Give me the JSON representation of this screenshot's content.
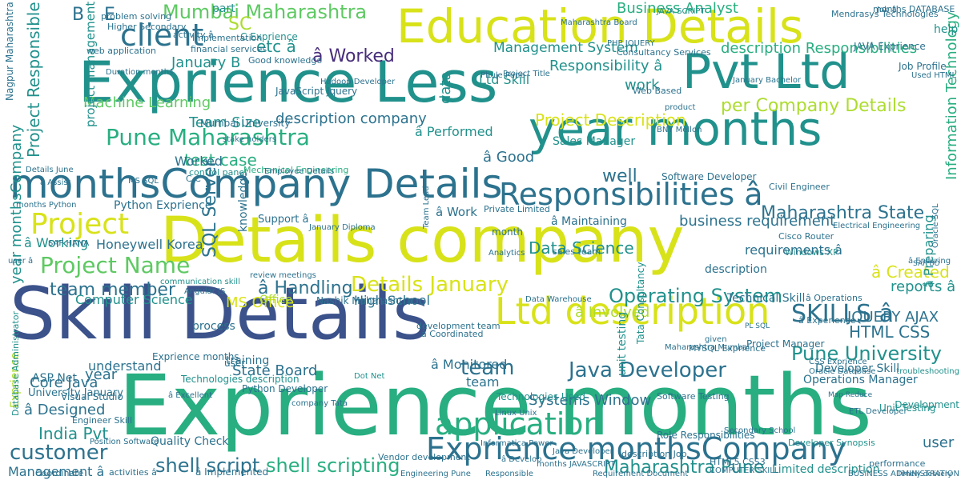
{
  "palette": {
    "navy": "#3b528b",
    "purple": "#472d7b",
    "dark_teal": "#2c728e",
    "teal": "#21918c",
    "green": "#28ae80",
    "light_green": "#5ec962",
    "lime": "#addc30",
    "yellow": "#d8e219"
  },
  "words": [
    {
      "text": "Exprience months",
      "color": "green"
    },
    {
      "text": "Skill Details",
      "color": "navy"
    },
    {
      "text": "Details company",
      "color": "yellow"
    },
    {
      "text": "Exprience Less",
      "color": "teal"
    },
    {
      "text": "Pvt Ltd",
      "color": "teal"
    },
    {
      "text": "Education Details",
      "color": "yellow"
    },
    {
      "text": "year months",
      "color": "teal"
    },
    {
      "text": "monthsCompany Details",
      "color": "dark_teal"
    },
    {
      "text": "Ltd description",
      "color": "yellow"
    },
    {
      "text": "Responsibilities â",
      "color": "dark_teal"
    },
    {
      "text": "Exprience monthsCompany",
      "color": "dark_teal"
    },
    {
      "text": "application",
      "color": "green"
    },
    {
      "text": "Project",
      "color": "yellow"
    },
    {
      "text": "Project Name",
      "color": "light_green"
    },
    {
      "text": "Pune Maharashtra",
      "color": "green"
    },
    {
      "text": "client",
      "color": "dark_teal"
    },
    {
      "text": "SKILLS â",
      "color": "dark_teal"
    },
    {
      "text": "Java Developer",
      "color": "dark_teal"
    },
    {
      "text": "Operating System",
      "color": "teal"
    },
    {
      "text": "Details January",
      "color": "yellow"
    },
    {
      "text": "Mumbai Maharashtra",
      "color": "light_green"
    },
    {
      "text": "customer",
      "color": "dark_teal"
    },
    {
      "text": "team",
      "color": "dark_teal"
    },
    {
      "text": "team member",
      "color": "dark_teal"
    },
    {
      "text": "Pune University",
      "color": "teal"
    },
    {
      "text": "shell script",
      "color": "dark_teal"
    },
    {
      "text": "shell scripting",
      "color": "green"
    },
    {
      "text": "Maharashtra State",
      "color": "dark_teal"
    },
    {
      "text": "per Company Details",
      "color": "lime"
    },
    {
      "text": "description company",
      "color": "dark_teal"
    },
    {
      "text": "Management System",
      "color": "teal"
    },
    {
      "text": "Project Description",
      "color": "yellow"
    },
    {
      "text": "â Worked",
      "color": "purple"
    },
    {
      "text": "â Handling",
      "color": "dark_teal"
    },
    {
      "text": "State Board",
      "color": "dark_teal"
    },
    {
      "text": "HTML CSS",
      "color": "dark_teal"
    },
    {
      "text": "JQUERY AJAX",
      "color": "dark_teal"
    },
    {
      "text": "â Created",
      "color": "yellow"
    },
    {
      "text": "reports â",
      "color": "teal"
    },
    {
      "text": "Data Science",
      "color": "teal"
    },
    {
      "text": "Business Analyst",
      "color": "green"
    },
    {
      "text": "Responsibility â",
      "color": "teal"
    },
    {
      "text": "description Responsibilities",
      "color": "green"
    },
    {
      "text": "test case",
      "color": "green"
    },
    {
      "text": "business requirement",
      "color": "dark_teal"
    },
    {
      "text": "MS Office",
      "color": "yellow"
    },
    {
      "text": "Core Java",
      "color": "dark_teal"
    },
    {
      "text": "India Pvt",
      "color": "teal"
    },
    {
      "text": "Honeywell Korea",
      "color": "dark_teal"
    },
    {
      "text": "Machine Learning",
      "color": "light_green"
    },
    {
      "text": "Python Exprience",
      "color": "dark_teal"
    },
    {
      "text": "Team Size",
      "color": "teal"
    },
    {
      "text": "â Involved",
      "color": "lime"
    },
    {
      "text": "Limited description",
      "color": "teal"
    },
    {
      "text": "Quality Check",
      "color": "dark_teal"
    },
    {
      "text": "SQL Server",
      "color": "dark_teal"
    },
    {
      "text": "year monthsCompany",
      "color": "teal"
    },
    {
      "text": "January B",
      "color": "teal"
    },
    {
      "text": "Ltd Skill",
      "color": "teal"
    },
    {
      "text": "Maharashtra Pune",
      "color": "teal"
    },
    {
      "text": "Information Technology",
      "color": "green"
    },
    {
      "text": "â Work",
      "color": "dark_teal"
    },
    {
      "text": "Technical Skill",
      "color": "dark_teal"
    },
    {
      "text": "JAVA Exprience",
      "color": "dark_teal"
    },
    {
      "text": "Software Developer",
      "color": "dark_teal"
    },
    {
      "text": "Sales Manager",
      "color": "teal"
    },
    {
      "text": "High School",
      "color": "dark_teal"
    },
    {
      "text": "University January",
      "color": "dark_teal"
    },
    {
      "text": "Systems Window",
      "color": "dark_teal"
    },
    {
      "text": "â Designed",
      "color": "dark_teal"
    },
    {
      "text": "â Preparing",
      "color": "teal"
    },
    {
      "text": "Computer Science",
      "color": "teal"
    },
    {
      "text": "Windows XP",
      "color": "teal"
    },
    {
      "text": "understand",
      "color": "dark_teal"
    },
    {
      "text": "Civil Engineer",
      "color": "dark_teal"
    },
    {
      "text": "requirements â",
      "color": "dark_teal"
    },
    {
      "text": "Management â",
      "color": "dark_teal"
    },
    {
      "text": "Office",
      "color": "lime"
    },
    {
      "text": "user",
      "color": "dark_teal"
    },
    {
      "text": "well",
      "color": "dark_teal"
    },
    {
      "text": "year",
      "color": "dark_teal"
    },
    {
      "text": "Exprience",
      "color": "lime"
    },
    {
      "text": "data",
      "color": "teal"
    },
    {
      "text": "process",
      "color": "dark_teal"
    },
    {
      "text": "training",
      "color": "dark_teal"
    },
    {
      "text": "work",
      "color": "teal"
    },
    {
      "text": "part",
      "color": "teal"
    },
    {
      "text": "help",
      "color": "teal"
    },
    {
      "text": "etc â",
      "color": "teal"
    },
    {
      "text": "Worked",
      "color": "dark_teal"
    },
    {
      "text": "Project Responsible",
      "color": "teal"
    },
    {
      "text": "knowledge",
      "color": "dark_teal"
    },
    {
      "text": "â Good",
      "color": "dark_teal"
    },
    {
      "text": "â Monitored",
      "color": "dark_teal"
    },
    {
      "text": "â Performed",
      "color": "teal"
    },
    {
      "text": "â Working",
      "color": "teal"
    },
    {
      "text": "â Maintaining",
      "color": "dark_teal"
    },
    {
      "text": "Nagpur Maharashtra",
      "color": "dark_teal"
    },
    {
      "text": "project management",
      "color": "teal"
    },
    {
      "text": "description",
      "color": "dark_teal"
    },
    {
      "text": "Technologies description",
      "color": "teal"
    },
    {
      "text": "Technologies Used",
      "color": "teal"
    },
    {
      "text": "Development",
      "color": "teal"
    },
    {
      "text": "Mumbai University",
      "color": "dark_teal"
    },
    {
      "text": "problem solving",
      "color": "dark_teal"
    },
    {
      "text": "Higher Secondary",
      "color": "dark_teal"
    },
    {
      "text": "Duration months",
      "color": "dark_teal"
    },
    {
      "text": "ASP Net",
      "color": "dark_teal"
    },
    {
      "text": "Visual Studio",
      "color": "dark_teal"
    },
    {
      "text": "Python Developer",
      "color": "dark_teal"
    },
    {
      "text": "Software Testing",
      "color": "dark_teal"
    },
    {
      "text": "Operations Manager",
      "color": "dark_teal"
    },
    {
      "text": "MYSQL Exprience",
      "color": "dark_teal"
    },
    {
      "text": "Data Warehouse",
      "color": "dark_teal"
    },
    {
      "text": "development team",
      "color": "dark_teal"
    },
    {
      "text": "Nashik Maharashtra",
      "color": "dark_teal"
    },
    {
      "text": "Oracle Database",
      "color": "dark_teal"
    },
    {
      "text": "COMPUTER SKILL",
      "color": "dark_teal"
    },
    {
      "text": "ETL Developer",
      "color": "dark_teal"
    },
    {
      "text": "Cisco Router",
      "color": "dark_teal"
    },
    {
      "text": "Job Profile",
      "color": "dark_teal"
    },
    {
      "text": "Used HTML",
      "color": "dark_teal"
    },
    {
      "text": "Web Based",
      "color": "dark_teal"
    },
    {
      "text": "Phule Pune",
      "color": "dark_teal"
    },
    {
      "text": "JavaScript Jquery",
      "color": "dark_teal"
    },
    {
      "text": "Consultancy Services",
      "color": "dark_teal"
    },
    {
      "text": "January Bachelor",
      "color": "dark_teal"
    },
    {
      "text": "JAVA SCRIPT",
      "color": "teal"
    },
    {
      "text": "Good knowledge",
      "color": "dark_teal"
    },
    {
      "text": "Private Limited",
      "color": "dark_teal"
    },
    {
      "text": "Engineer Skill",
      "color": "dark_teal"
    },
    {
      "text": "Position Software",
      "color": "dark_teal"
    },
    {
      "text": "Requirement Document",
      "color": "dark_teal"
    },
    {
      "text": "web application",
      "color": "dark_teal"
    },
    {
      "text": "Dot Net",
      "color": "teal"
    },
    {
      "text": "company Tata",
      "color": "dark_teal"
    },
    {
      "text": "BNY Mellon",
      "color": "dark_teal"
    },
    {
      "text": "sales team",
      "color": "dark_teal"
    },
    {
      "text": "months Python",
      "color": "dark_teal"
    },
    {
      "text": "SAP HANA",
      "color": "dark_teal"
    },
    {
      "text": "CSS Exprience",
      "color": "dark_teal"
    },
    {
      "text": "Map Reduce",
      "color": "dark_teal"
    },
    {
      "text": "Mechanical Engineering",
      "color": "green"
    },
    {
      "text": "control panel",
      "color": "teal"
    },
    {
      "text": "stake holders",
      "color": "dark_teal"
    },
    {
      "text": "user",
      "color": "dark_teal"
    },
    {
      "text": "B",
      "color": "dark_teal"
    },
    {
      "text": "E",
      "color": "dark_teal"
    },
    {
      "text": "SC",
      "color": "lime"
    },
    {
      "text": "C Exprience",
      "color": "teal"
    },
    {
      "text": "Exprience months",
      "color": "dark_teal"
    },
    {
      "text": "review meetings",
      "color": "dark_teal"
    },
    {
      "text": "Unit Testing",
      "color": "teal"
    },
    {
      "text": "product",
      "color": "dark_teal"
    },
    {
      "text": "team",
      "color": "dark_teal"
    },
    {
      "text": "unit testing",
      "color": "teal"
    },
    {
      "text": "Tata Consultancy",
      "color": "teal"
    },
    {
      "text": "Role Responsibilities",
      "color": "dark_teal"
    },
    {
      "text": "HTML5 CSS3",
      "color": "dark_teal"
    },
    {
      "text": "Informatica Power",
      "color": "dark_teal"
    },
    {
      "text": "months JAVASCRIPT",
      "color": "dark_teal"
    },
    {
      "text": "â Implemented",
      "color": "dark_teal"
    },
    {
      "text": "activities â",
      "color": "dark_teal"
    },
    {
      "text": "Coordinate",
      "color": "dark_teal"
    },
    {
      "text": "Job â",
      "color": "dark_teal"
    },
    {
      "text": "performance",
      "color": "dark_teal"
    },
    {
      "text": "BUSINESS ADMINISTRATION",
      "color": "dark_teal"
    },
    {
      "text": "Developer Synopsis",
      "color": "teal"
    },
    {
      "text": "Angular JS",
      "color": "dark_teal"
    },
    {
      "text": "communication skill",
      "color": "teal"
    },
    {
      "text": "Employee Details",
      "color": "dark_teal"
    },
    {
      "text": "Details June",
      "color": "dark_teal"
    },
    {
      "text": "â Excellent",
      "color": "dark_teal"
    },
    {
      "text": "activity â",
      "color": "dark_teal"
    },
    {
      "text": "financial services",
      "color": "dark_teal"
    },
    {
      "text": "Hadoop Developer",
      "color": "dark_teal"
    },
    {
      "text": "Mendrasys Technologies",
      "color": "dark_teal"
    },
    {
      "text": "months DATABASE",
      "color": "dark_teal"
    },
    {
      "text": "â Ensuring",
      "color": "dark_teal"
    },
    {
      "text": "â Operations",
      "color": "dark_teal"
    },
    {
      "text": "â Experience",
      "color": "dark_teal"
    },
    {
      "text": "Project Manager",
      "color": "dark_teal"
    },
    {
      "text": "Developer Skill",
      "color": "dark_teal"
    },
    {
      "text": "troubleshooting",
      "color": "teal"
    },
    {
      "text": "Maharashtra Mumbai",
      "color": "dark_teal"
    },
    {
      "text": "Linux Unix",
      "color": "dark_teal"
    },
    {
      "text": "Java Developer",
      "color": "dark_teal"
    },
    {
      "text": "Maharashtra Board",
      "color": "dark_teal"
    },
    {
      "text": "PHP JQUERY",
      "color": "dark_teal"
    },
    {
      "text": "Project Title",
      "color": "dark_teal"
    },
    {
      "text": "Responsible",
      "color": "dark_teal"
    },
    {
      "text": "description Job",
      "color": "dark_teal"
    },
    {
      "text": "Vendor development",
      "color": "dark_teal"
    },
    {
      "text": "Engineering Pune",
      "color": "dark_teal"
    },
    {
      "text": "â Assist",
      "color": "dark_teal"
    },
    {
      "text": "user â",
      "color": "dark_teal"
    },
    {
      "text": "Implementation",
      "color": "dark_teal"
    },
    {
      "text": "MS SQL",
      "color": "dark_teal"
    },
    {
      "text": "C C",
      "color": "dark_teal"
    },
    {
      "text": "January Diploma",
      "color": "dark_teal"
    },
    {
      "text": "Support â",
      "color": "dark_teal"
    },
    {
      "text": "â Coordinated",
      "color": "dark_teal"
    },
    {
      "text": "â Develop",
      "color": "dark_teal"
    },
    {
      "text": "month",
      "color": "dark_teal"
    },
    {
      "text": "Secondary School",
      "color": "dark_teal"
    },
    {
      "text": "Electrical Engineering",
      "color": "dark_teal"
    },
    {
      "text": "Oracle SQL",
      "color": "dark_teal"
    },
    {
      "text": "PL SQL",
      "color": "dark_teal"
    },
    {
      "text": "Team Lead",
      "color": "dark_teal"
    },
    {
      "text": "given",
      "color": "dark_teal"
    },
    {
      "text": "Analytics",
      "color": "dark_teal"
    },
    {
      "text": "Database Administrator",
      "color": "teal"
    },
    {
      "text": "SAP BO",
      "color": "dark_teal"
    },
    {
      "text": "Timely delivery",
      "color": "dark_teal"
    },
    {
      "text": "Maharashtra University",
      "color": "dark_teal"
    },
    {
      "text": "Configuration Management",
      "color": "dark_teal"
    },
    {
      "text": "Kiring schematic",
      "color": "dark_teal"
    },
    {
      "text": "Requirement Gathering",
      "color": "teal"
    },
    {
      "text": "MANAGEMENT Exprience",
      "color": "dark_teal"
    },
    {
      "text": "Automation Testing",
      "color": "dark_teal"
    }
  ]
}
